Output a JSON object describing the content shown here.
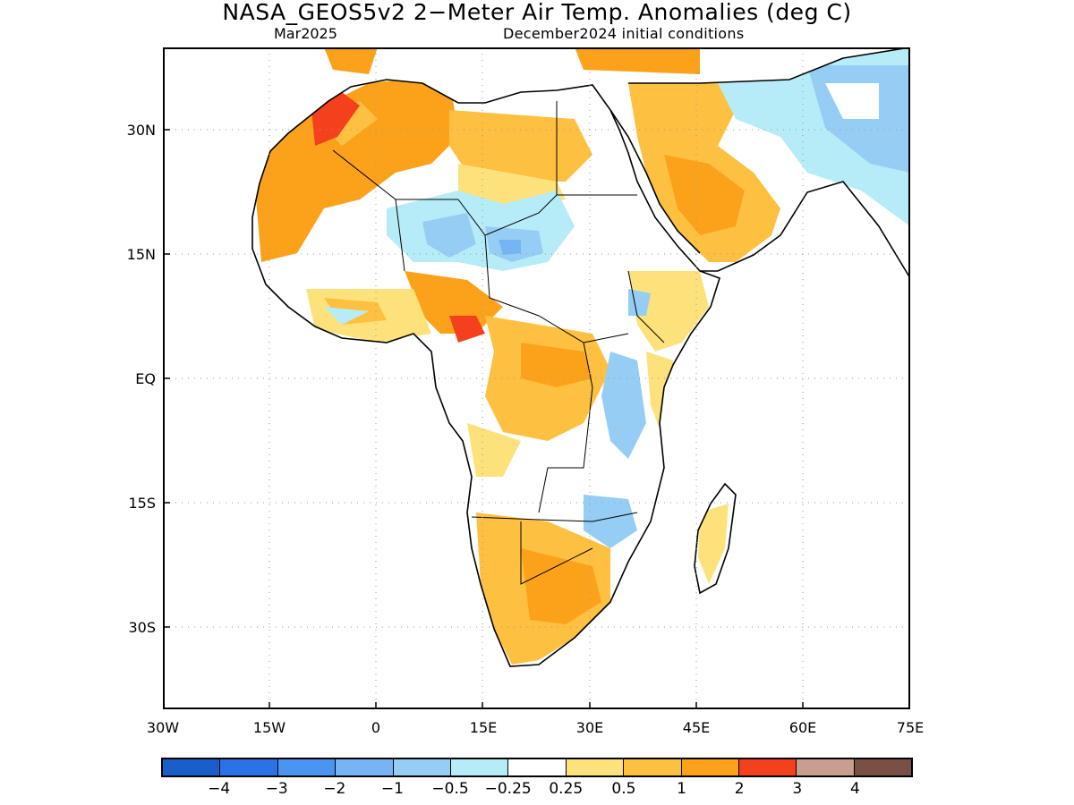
{
  "header": {
    "title": "NASA_GEOS5v2 2−Meter Air Temp. Anomalies (deg C)",
    "valid_month": "Mar2025",
    "init_conditions": "December2024 initial conditions"
  },
  "axes": {
    "lat_labels": [
      "30N",
      "15N",
      "EQ",
      "15S",
      "30S"
    ],
    "lat_values": [
      30,
      15,
      0,
      -15,
      -30
    ],
    "lon_labels": [
      "30W",
      "15W",
      "0",
      "15E",
      "30E",
      "45E",
      "60E",
      "75E"
    ],
    "lon_values": [
      -30,
      -15,
      0,
      15,
      30,
      45,
      60,
      75
    ],
    "lat_range": [
      -40,
      40
    ],
    "lon_range": [
      -30,
      75
    ],
    "grid": "dotted"
  },
  "colorbar": {
    "colors": [
      "#1a5fc9",
      "#2b72e6",
      "#4a95f0",
      "#76b4f3",
      "#96cdf5",
      "#b6ecf7",
      "#ffffff",
      "#fde27c",
      "#fdc040",
      "#fba21a",
      "#f5401e",
      "#c89e90",
      "#7a5046"
    ],
    "labels": [
      "−4",
      "−3",
      "−2",
      "−1",
      "−0.5",
      "−0.25",
      "0.25",
      "0.5",
      "1",
      "2",
      "3",
      "4"
    ]
  }
}
